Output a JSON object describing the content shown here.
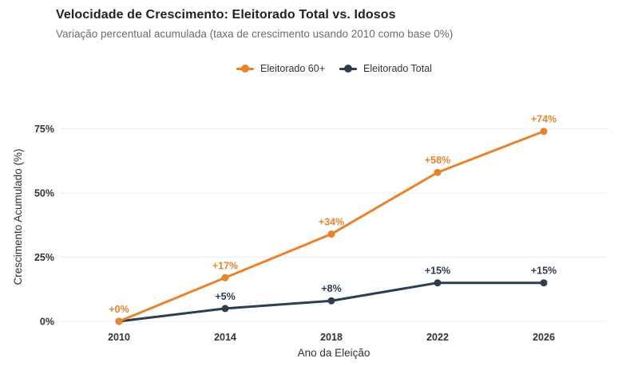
{
  "header": {
    "title": "Velocidade de Crescimento: Eleitorado Total vs. Idosos",
    "subtitle": "Variação percentual acumulada (taxa de crescimento usando 2010 como base 0%)"
  },
  "legend": {
    "items": [
      {
        "label": "Eleitorado 60+",
        "color": "#E8832C"
      },
      {
        "label": "Eleitorado Total",
        "color": "#2C3E50"
      }
    ]
  },
  "chart_data": {
    "type": "line",
    "title": "Velocidade de Crescimento: Eleitorado Total vs. Idosos",
    "subtitle": "Variação percentual acumulada (taxa de crescimento usando 2010 como base 0%)",
    "xlabel": "Ano da Eleição",
    "ylabel": "Crescimento Acumulado (%)",
    "x": [
      2010,
      2014,
      2018,
      2022,
      2026
    ],
    "xtick_labels": [
      "2010",
      "2014",
      "2018",
      "2022",
      "2026"
    ],
    "yticks": [
      0,
      25,
      50,
      75
    ],
    "ytick_labels": [
      "0%",
      "25%",
      "50%",
      "75%"
    ],
    "ylim": [
      -7,
      84
    ],
    "grid": true,
    "grid_color": "#ECECEC",
    "legend_position": "top-center",
    "series": [
      {
        "name": "Eleitorado 60+",
        "color": "#E8832C",
        "values": [
          0,
          17,
          34,
          58,
          74
        ],
        "point_labels": [
          "+0%",
          "+17%",
          "+34%",
          "+58%",
          "+74%"
        ]
      },
      {
        "name": "Eleitorado Total",
        "color": "#2C3E50",
        "values": [
          0,
          5,
          8,
          15,
          15
        ],
        "point_labels": [
          "",
          "+5%",
          "+8%",
          "+15%",
          "+15%"
        ]
      }
    ]
  }
}
